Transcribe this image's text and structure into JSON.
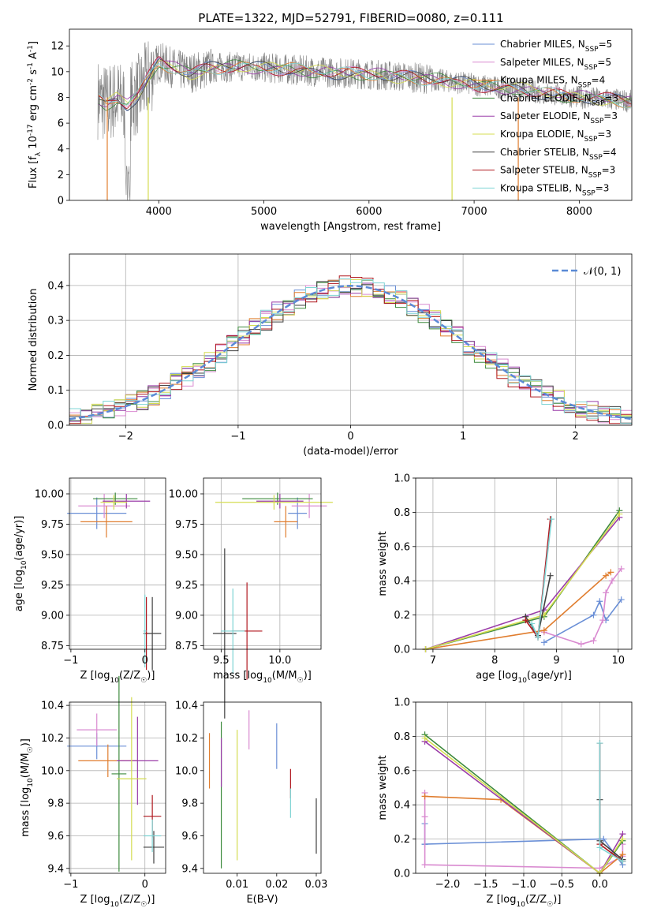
{
  "chart_data": [
    {
      "id": "spectrum",
      "type": "line",
      "title": "PLATE=1322, MJD=52791, FIBERID=0080, z=0.111",
      "xlabel": "wavelength [Angstrom, rest frame]",
      "ylabel": "Flux [f_λ 10^-17 erg cm^-2 s^-1 A^-1]",
      "xlim": [
        3150,
        8500
      ],
      "ylim": [
        0,
        13.3
      ],
      "xticks": [
        4000,
        5000,
        6000,
        7000,
        8000
      ],
      "yticks": [
        0,
        2,
        4,
        6,
        8,
        10,
        12
      ],
      "grid": false,
      "legend_position": "upper-right",
      "observed_color": "#808080",
      "legend": [
        {
          "label": "Chabrier MILES, N_SSP=5",
          "color": "#6a8fd6"
        },
        {
          "label": "Salpeter MILES, N_SSP=5",
          "color": "#d98ad0"
        },
        {
          "label": "Kroupa MILES, N_SSP=4",
          "color": "#e07d2e"
        },
        {
          "label": "Chabrier ELODIE, N_SSP=3",
          "color": "#3d8a3d"
        },
        {
          "label": "Salpeter ELODIE, N_SSP=3",
          "color": "#9a3ca8"
        },
        {
          "label": "Kroupa ELODIE, N_SSP=3",
          "color": "#d4dc50"
        },
        {
          "label": "Chabrier STELIB, N_SSP=4",
          "color": "#404040"
        },
        {
          "label": "Salpeter STELIB, N_SSP=3",
          "color": "#b0181f"
        },
        {
          "label": "Kroupa STELIB, N_SSP=3",
          "color": "#7fd4d4"
        }
      ],
      "envelope": {
        "x": [
          3420,
          3500,
          3600,
          3700,
          3800,
          3900,
          4000,
          4100,
          4200,
          4300,
          4500,
          4800,
          5000,
          5200,
          5500,
          6000,
          6500,
          6800,
          7000,
          7200,
          7400,
          7600,
          7800,
          8000,
          8200,
          8500
        ],
        "y": [
          7.9,
          7.5,
          7.9,
          7.4,
          8.2,
          9.5,
          10.8,
          10.4,
          10.1,
          9.9,
          10.3,
          10.4,
          10.3,
          10.2,
          10.0,
          9.8,
          9.5,
          9.2,
          9.0,
          8.8,
          8.7,
          8.4,
          8.2,
          8.0,
          7.9,
          7.7
        ]
      }
    },
    {
      "id": "residuals",
      "type": "line",
      "xlabel": "(data-model)/error",
      "ylabel": "Normed distribution",
      "xlim": [
        -2.5,
        2.5
      ],
      "ylim": [
        0,
        0.49
      ],
      "xticks": [
        -2,
        -1,
        0,
        1,
        2
      ],
      "yticks": [
        0.0,
        0.1,
        0.2,
        0.3,
        0.4
      ],
      "grid": true,
      "legend_position": "upper-right",
      "legend": [
        {
          "label": "𝒩(0, 1)",
          "color": "#5b8ad6"
        }
      ],
      "bin_width": 0.1
    },
    {
      "id": "age-vs-z",
      "type": "scatter",
      "xlabel": "Z [log10(Z/Z☉)]",
      "ylabel": "age  [log10(age/yr)]",
      "xlim": [
        -1.02,
        0.28
      ],
      "ylim": [
        8.72,
        10.13
      ],
      "xticks": [
        -1,
        0
      ],
      "yticks": [
        8.75,
        9.0,
        9.25,
        9.5,
        9.75,
        10.0
      ],
      "grid": true,
      "crosses": [
        {
          "series": "Chabrier MILES",
          "x": -0.65,
          "y": 9.84,
          "xerr": 0.4,
          "yerr": 0.13
        },
        {
          "series": "Salpeter MILES",
          "x": -0.55,
          "y": 9.9,
          "xerr": 0.35,
          "yerr": 0.1
        },
        {
          "series": "Kroupa MILES",
          "x": -0.52,
          "y": 9.77,
          "xerr": 0.35,
          "yerr": 0.13
        },
        {
          "series": "Chabrier ELODIE",
          "x": -0.4,
          "y": 9.96,
          "xerr": 0.3,
          "yerr": 0.05
        },
        {
          "series": "Salpeter ELODIE",
          "x": -0.25,
          "y": 9.94,
          "xerr": 0.32,
          "yerr": 0.06
        },
        {
          "series": "Kroupa ELODIE",
          "x": -0.42,
          "y": 9.93,
          "xerr": 0.18,
          "yerr": 0.06
        },
        {
          "series": "Chabrier STELIB",
          "x": 0.1,
          "y": 8.85,
          "xerr": 0.12,
          "yerr": 0.3
        },
        {
          "series": "Salpeter STELIB",
          "x": 0.02,
          "y": 8.85,
          "xerr": 0.02,
          "yerr": 0.3
        },
        {
          "series": "Kroupa STELIB",
          "x": 0.0,
          "y": 8.87,
          "xerr": 0.02,
          "yerr": 0.3
        }
      ]
    },
    {
      "id": "age-vs-mass",
      "type": "scatter",
      "xlabel": "mass [log10(M/M☉)]",
      "ylabel": "",
      "xlim": [
        9.35,
        10.35
      ],
      "ylim": [
        8.72,
        10.13
      ],
      "xticks": [
        9.5,
        10.0
      ],
      "yticks": [
        8.75,
        9.0,
        9.25,
        9.5,
        9.75,
        10.0
      ],
      "grid": true,
      "crosses": [
        {
          "series": "Chabrier MILES",
          "x": 10.15,
          "y": 9.84,
          "xerr": 0.08,
          "yerr": 0.13
        },
        {
          "series": "Salpeter MILES",
          "x": 10.25,
          "y": 9.9,
          "xerr": 0.15,
          "yerr": 0.1
        },
        {
          "series": "Kroupa MILES",
          "x": 10.05,
          "y": 9.77,
          "xerr": 0.1,
          "yerr": 0.13
        },
        {
          "series": "Chabrier ELODIE",
          "x": 9.98,
          "y": 9.96,
          "xerr": 0.3,
          "yerr": 0.05
        },
        {
          "series": "Salpeter ELODIE",
          "x": 10.0,
          "y": 9.94,
          "xerr": 0.2,
          "yerr": 0.06
        },
        {
          "series": "Kroupa ELODIE",
          "x": 9.95,
          "y": 9.93,
          "xerr": 0.5,
          "yerr": 0.06
        },
        {
          "series": "Chabrier STELIB",
          "x": 9.53,
          "y": 8.85,
          "xerr": 0.1,
          "yerr": 0.7
        },
        {
          "series": "Salpeter STELIB",
          "x": 9.72,
          "y": 8.87,
          "xerr": 0.13,
          "yerr": 0.4
        },
        {
          "series": "Kroupa STELIB",
          "x": 9.6,
          "y": 8.87,
          "xerr": 0.1,
          "yerr": 0.35
        }
      ]
    },
    {
      "id": "weight-vs-age",
      "type": "line",
      "xlabel": "age  [log10(age/yr)]",
      "ylabel": "mass weight",
      "xlim": [
        6.72,
        10.22
      ],
      "ylim": [
        0,
        1.0
      ],
      "xticks": [
        7,
        8,
        9,
        10
      ],
      "yticks": [
        0.0,
        0.2,
        0.4,
        0.6,
        0.8,
        1.0
      ],
      "grid": true,
      "series": [
        {
          "name": "Chabrier MILES",
          "x": [
            8.8,
            9.6,
            9.7,
            9.8,
            10.05
          ],
          "y": [
            0.04,
            0.2,
            0.28,
            0.17,
            0.29
          ]
        },
        {
          "name": "Salpeter MILES",
          "x": [
            8.8,
            9.4,
            9.6,
            9.75,
            9.8,
            9.9,
            10.05
          ],
          "y": [
            0.1,
            0.03,
            0.05,
            0.17,
            0.33,
            0.4,
            0.47
          ]
        },
        {
          "name": "Kroupa MILES",
          "x": [
            6.88,
            8.8,
            9.8,
            9.88
          ],
          "y": [
            0.0,
            0.11,
            0.43,
            0.45
          ]
        },
        {
          "name": "Chabrier ELODIE",
          "x": [
            6.88,
            8.8,
            10.02
          ],
          "y": [
            0.0,
            0.19,
            0.81
          ]
        },
        {
          "name": "Salpeter ELODIE",
          "x": [
            6.88,
            8.8,
            10.02
          ],
          "y": [
            0.0,
            0.23,
            0.77
          ]
        },
        {
          "name": "Kroupa ELODIE",
          "x": [
            6.88,
            8.8,
            10.02
          ],
          "y": [
            0.0,
            0.2,
            0.79
          ]
        },
        {
          "name": "Chabrier STELIB",
          "x": [
            8.5,
            8.7,
            8.9
          ],
          "y": [
            0.19,
            0.08,
            0.43
          ]
        },
        {
          "name": "Salpeter STELIB",
          "x": [
            8.5,
            8.7,
            8.9
          ],
          "y": [
            0.17,
            0.07,
            0.76
          ]
        },
        {
          "name": "Kroupa STELIB",
          "x": [
            8.6,
            8.7,
            8.92
          ],
          "y": [
            0.15,
            0.07,
            0.76
          ]
        }
      ]
    },
    {
      "id": "mass-vs-z",
      "type": "scatter",
      "xlabel": "Z [log10(Z/Z☉)]",
      "ylabel": "mass [log10(M/M☉)]",
      "xlim": [
        -1.02,
        0.28
      ],
      "ylim": [
        9.37,
        10.42
      ],
      "xticks": [
        -1,
        0
      ],
      "yticks": [
        9.4,
        9.6,
        9.8,
        10.0,
        10.2,
        10.4
      ],
      "grid": true,
      "crosses": [
        {
          "series": "Chabrier MILES",
          "x": -0.65,
          "y": 10.15,
          "xerr": 0.4,
          "yerr": 0.08
        },
        {
          "series": "Salpeter MILES",
          "x": -0.65,
          "y": 10.25,
          "xerr": 0.27,
          "yerr": 0.1
        },
        {
          "series": "Kroupa MILES",
          "x": -0.5,
          "y": 10.06,
          "xerr": 0.4,
          "yerr": 0.1
        },
        {
          "series": "Chabrier ELODIE",
          "x": -0.35,
          "y": 9.98,
          "xerr": 0.1,
          "yerr": 0.6
        },
        {
          "series": "Salpeter ELODIE",
          "x": -0.1,
          "y": 10.06,
          "xerr": 0.28,
          "yerr": 0.27
        },
        {
          "series": "Kroupa ELODIE",
          "x": -0.18,
          "y": 9.95,
          "xerr": 0.2,
          "yerr": 0.5
        },
        {
          "series": "Chabrier STELIB",
          "x": 0.12,
          "y": 9.53,
          "xerr": 0.14,
          "yerr": 0.1
        },
        {
          "series": "Salpeter STELIB",
          "x": 0.1,
          "y": 9.72,
          "xerr": 0.12,
          "yerr": 0.13
        },
        {
          "series": "Kroupa STELIB",
          "x": 0.1,
          "y": 9.6,
          "xerr": 0.12,
          "yerr": 0.1
        }
      ]
    },
    {
      "id": "mass-vs-ebv",
      "type": "scatter",
      "xlabel": "E(B-V)",
      "ylabel": "",
      "xlim": [
        0.0015,
        0.0312
      ],
      "ylim": [
        9.37,
        10.42
      ],
      "xticks": [
        0.01,
        0.02,
        0.03
      ],
      "yticks": [
        9.4,
        9.6,
        9.8,
        10.0,
        10.2,
        10.4
      ],
      "grid": false,
      "vbars": [
        {
          "series": "Kroupa MILES",
          "x": 0.003,
          "y": 10.06,
          "yerr": 0.17
        },
        {
          "series": "Chabrier ELODIE",
          "x": 0.006,
          "y": 9.85,
          "yerr": 0.45
        },
        {
          "series": "Salpeter ELODIE",
          "x": 0.006,
          "y": 10.05,
          "yerr": 0.15
        },
        {
          "series": "Kroupa ELODIE",
          "x": 0.01,
          "y": 9.85,
          "yerr": 0.4
        },
        {
          "series": "Salpeter MILES",
          "x": 0.013,
          "y": 10.25,
          "yerr": 0.12
        },
        {
          "series": "Chabrier MILES",
          "x": 0.02,
          "y": 10.15,
          "yerr": 0.14
        },
        {
          "series": "Salpeter STELIB",
          "x": 0.0235,
          "y": 9.92,
          "yerr": 0.09
        },
        {
          "series": "Kroupa STELIB",
          "x": 0.0235,
          "y": 9.8,
          "yerr": 0.09
        },
        {
          "series": "Chabrier STELIB",
          "x": 0.03,
          "y": 9.66,
          "yerr": 0.17
        }
      ]
    },
    {
      "id": "weight-vs-z",
      "type": "line",
      "xlabel": "Z [log10(Z/Z☉)]",
      "ylabel": "mass weight",
      "xlim": [
        -2.42,
        0.42
      ],
      "ylim": [
        0,
        1.0
      ],
      "xticks": [
        -2.0,
        -1.5,
        -1.0,
        -0.5,
        0.0
      ],
      "yticks": [
        0.0,
        0.2,
        0.4,
        0.6,
        0.8,
        1.0
      ],
      "grid": true,
      "series": [
        {
          "name": "Chabrier MILES",
          "x": [
            -2.3,
            -2.3,
            -2.3,
            0.0,
            0.05,
            0.3
          ],
          "y": [
            0.29,
            0.17,
            0.17,
            0.2,
            0.2,
            0.05
          ]
        },
        {
          "name": "Salpeter MILES",
          "x": [
            -2.3,
            -2.3,
            -2.3,
            0.0,
            0.3,
            0.3
          ],
          "y": [
            0.47,
            0.33,
            0.05,
            0.03,
            0.1,
            0.17
          ]
        },
        {
          "name": "Kroupa MILES",
          "x": [
            -2.3,
            -1.3,
            0.0,
            0.3
          ],
          "y": [
            0.45,
            0.43,
            0.0,
            0.11
          ]
        },
        {
          "name": "Chabrier ELODIE",
          "x": [
            -2.3,
            0.0,
            0.3
          ],
          "y": [
            0.81,
            0.0,
            0.19
          ]
        },
        {
          "name": "Salpeter ELODIE",
          "x": [
            -2.3,
            0.0,
            0.3
          ],
          "y": [
            0.77,
            0.0,
            0.23
          ]
        },
        {
          "name": "Kroupa ELODIE",
          "x": [
            -2.3,
            0.0,
            0.3
          ],
          "y": [
            0.79,
            0.0,
            0.2
          ]
        },
        {
          "name": "Chabrier STELIB",
          "x": [
            0.0,
            0.0,
            0.3
          ],
          "y": [
            0.43,
            0.19,
            0.08
          ]
        },
        {
          "name": "Salpeter STELIB",
          "x": [
            0.0,
            0.0,
            0.3
          ],
          "y": [
            0.76,
            0.17,
            0.07
          ]
        },
        {
          "name": "Kroupa STELIB",
          "x": [
            0.0,
            0.0,
            0.3
          ],
          "y": [
            0.76,
            0.15,
            0.07
          ]
        }
      ]
    }
  ]
}
